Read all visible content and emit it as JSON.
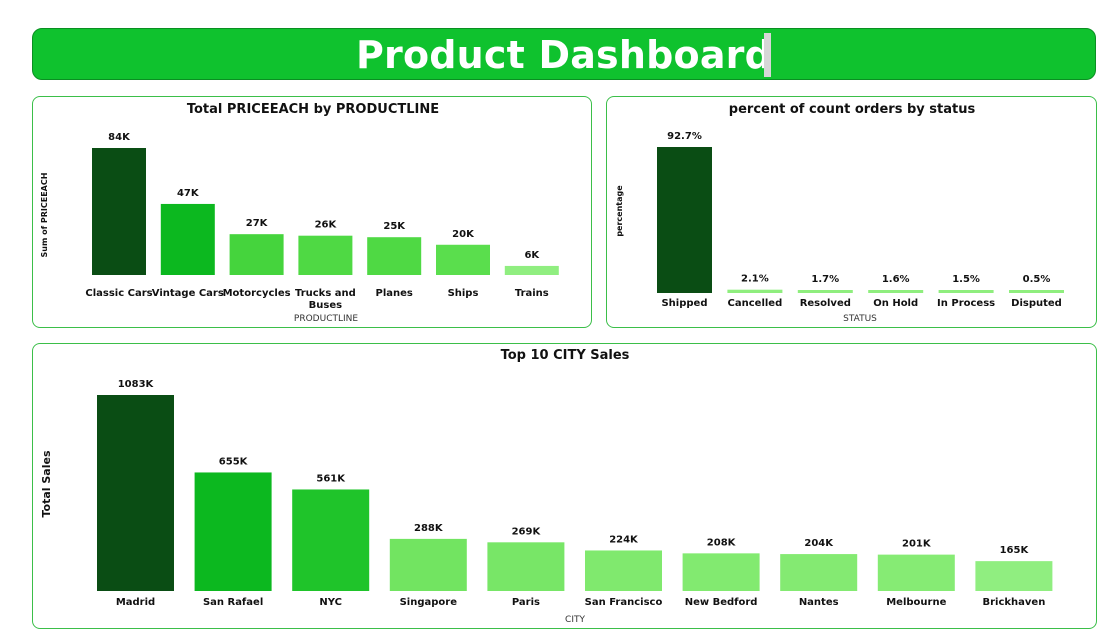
{
  "header": {
    "title": "Product Dashboard"
  },
  "colors": {
    "header_bg": "#0fc22e",
    "panel_border": "#3bbf49"
  },
  "chart_data": [
    {
      "type": "bar",
      "title": "Total PRICEEACH by PRODUCTLINE",
      "xlabel": "PRODUCTLINE",
      "ylabel": "Sum of PRICEEACH",
      "categories": [
        "Classic Cars",
        "Vintage Cars",
        "Motorcycles",
        "Trucks and Buses",
        "Planes",
        "Ships",
        "Trains"
      ],
      "category_lines": [
        [
          "Classic Cars"
        ],
        [
          "Vintage Cars"
        ],
        [
          "Motorcycles"
        ],
        [
          "Trucks and",
          "Buses"
        ],
        [
          "Planes"
        ],
        [
          "Ships"
        ],
        [
          "Trains"
        ]
      ],
      "values": [
        84,
        47,
        27,
        26,
        25,
        20,
        6
      ],
      "data_labels": [
        "84K",
        "47K",
        "27K",
        "26K",
        "25K",
        "20K",
        "6K"
      ],
      "colors": [
        "#0a4d14",
        "#0cb81f",
        "#45d43d",
        "#4fd944",
        "#4fd944",
        "#5ade4d",
        "#90ee80"
      ],
      "ylim": [
        0,
        84
      ],
      "grid": false
    },
    {
      "type": "bar",
      "title": "percent of count orders by status",
      "xlabel": "STATUS",
      "ylabel": "percentage",
      "categories": [
        "Shipped",
        "Cancelled",
        "Resolved",
        "On Hold",
        "In Process",
        "Disputed"
      ],
      "values": [
        92.7,
        2.1,
        1.7,
        1.6,
        1.5,
        0.5
      ],
      "data_labels": [
        "92.7%",
        "2.1%",
        "1.7%",
        "1.6%",
        "1.5%",
        "0.5%"
      ],
      "colors": [
        "#0a4d14",
        "#8fee7e",
        "#8fee7e",
        "#8fee7e",
        "#8fee7e",
        "#8fee7e"
      ],
      "ylim": [
        0,
        92.7
      ],
      "grid": false
    },
    {
      "type": "bar",
      "title": "Top 10 CITY Sales",
      "xlabel": "CITY",
      "ylabel": "Total Sales",
      "categories": [
        "Madrid",
        "San Rafael",
        "NYC",
        "Singapore",
        "Paris",
        "San Francisco",
        "New Bedford",
        "Nantes",
        "Melbourne",
        "Brickhaven"
      ],
      "values": [
        1083,
        655,
        561,
        288,
        269,
        224,
        208,
        204,
        201,
        165
      ],
      "data_labels": [
        "1083K",
        "655K",
        "561K",
        "288K",
        "269K",
        "224K",
        "208K",
        "204K",
        "201K",
        "165K"
      ],
      "colors": [
        "#0a4d14",
        "#0cb81f",
        "#1fc42a",
        "#72e461",
        "#78e667",
        "#80e96e",
        "#82ea70",
        "#84ea72",
        "#86eb74",
        "#90ee80"
      ],
      "ylim": [
        0,
        1083
      ],
      "grid": false
    }
  ]
}
